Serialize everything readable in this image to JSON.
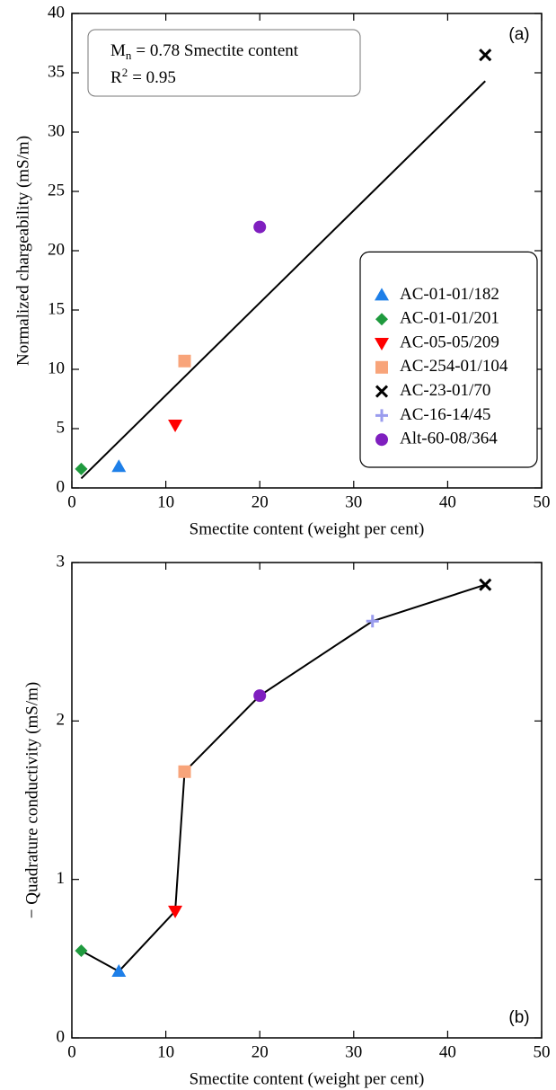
{
  "chart_data": [
    {
      "type": "scatter",
      "panel_label": "(a)",
      "xlabel": "Smectite content (weight per cent)",
      "ylabel": "Normalized chargeability (mS/m)",
      "xlim": [
        0,
        50
      ],
      "ylim": [
        0,
        40
      ],
      "xticks": [
        0,
        10,
        20,
        30,
        40,
        50
      ],
      "yticks": [
        0,
        5,
        10,
        15,
        20,
        25,
        30,
        35,
        40
      ],
      "legend": "lower right",
      "equation": {
        "symbol": "M",
        "subscript": "n",
        "text": "= 0.78 Smectite content"
      },
      "r2": {
        "symbol": "R",
        "superscript": "2",
        "text": "= 0.95"
      },
      "fit": {
        "x": [
          1,
          44
        ],
        "values": [
          0.8,
          34.3
        ],
        "color": "#000000"
      },
      "series": [
        {
          "name": "AC-01-01/182",
          "marker": "triangle",
          "color": "#1e7fe8",
          "x": [
            5
          ],
          "values": [
            1.8
          ]
        },
        {
          "name": "AC-01-01/201",
          "marker": "diamond",
          "color": "#1f9a3e",
          "x": [
            1
          ],
          "values": [
            1.6
          ]
        },
        {
          "name": "AC-05-05/209",
          "marker": "triangle-down",
          "color": "#ff0000",
          "x": [
            11
          ],
          "values": [
            5.3
          ]
        },
        {
          "name": "AC-254-01/104",
          "marker": "square",
          "color": "#f8a47a",
          "x": [
            12
          ],
          "values": [
            10.7
          ]
        },
        {
          "name": "AC-23-01/70",
          "marker": "x",
          "color": "#000000",
          "x": [
            44
          ],
          "values": [
            36.5
          ]
        },
        {
          "name": "AC-16-14/45",
          "marker": "plus",
          "color": "#9a9cee",
          "x": [
            32
          ],
          "values": [
            19.3
          ]
        },
        {
          "name": "Alt-60-08/364",
          "marker": "circle",
          "color": "#7f1fbf",
          "x": [
            20
          ],
          "values": [
            22
          ]
        }
      ]
    },
    {
      "type": "line",
      "panel_label": "(b)",
      "xlabel": "Smectite content (weight per cent)",
      "ylabel": "− Quadrature conductivity (mS/m)",
      "xlim": [
        0,
        50
      ],
      "ylim": [
        0,
        3
      ],
      "xticks": [
        0,
        10,
        20,
        30,
        40,
        50
      ],
      "yticks": [
        0,
        1,
        2,
        3
      ],
      "line_color": "#000000",
      "x": [
        1,
        5,
        11,
        12,
        20,
        32,
        44
      ],
      "values": [
        0.55,
        0.42,
        0.8,
        1.68,
        2.16,
        2.63,
        2.86
      ],
      "markers": [
        "diamond",
        "triangle",
        "triangle-down",
        "square",
        "circle",
        "plus",
        "x"
      ],
      "marker_colors": [
        "#1f9a3e",
        "#1e7fe8",
        "#ff0000",
        "#f8a47a",
        "#7f1fbf",
        "#9a9cee",
        "#000000"
      ]
    }
  ]
}
